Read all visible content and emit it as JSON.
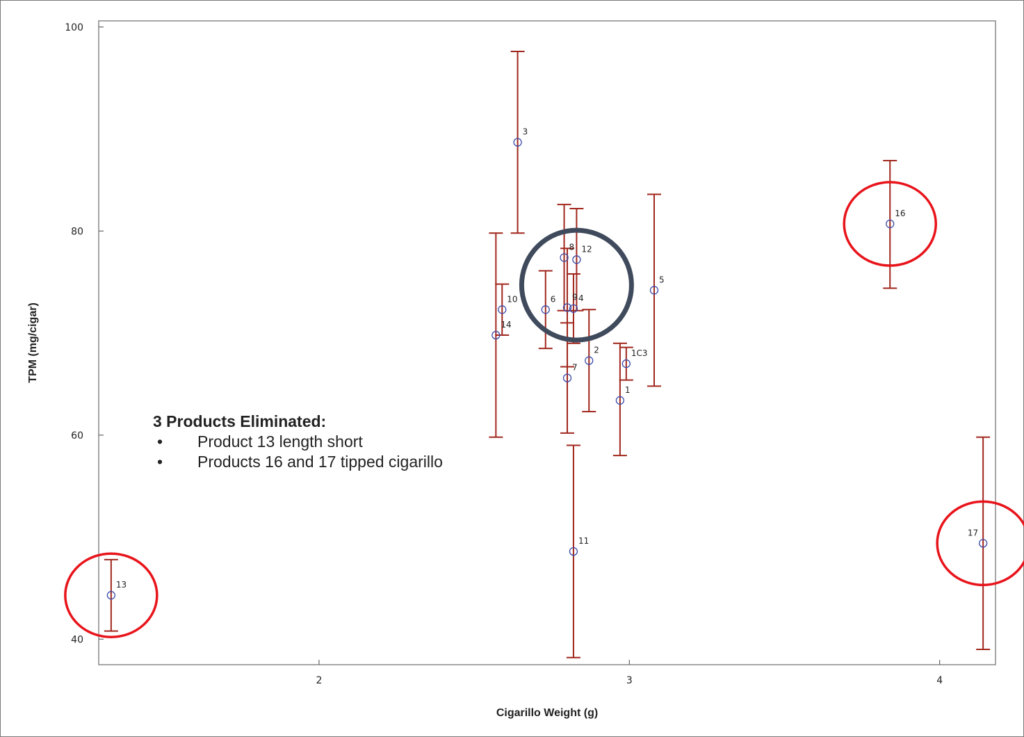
{
  "chart_data": {
    "type": "scatter",
    "title": "",
    "xlabel": "Cigarillo Weight (g)",
    "ylabel": "TPM (mg/cigar)",
    "xlim": [
      1.29,
      4.18
    ],
    "ylim": [
      37.5,
      100.6
    ],
    "xticks": [
      2,
      3,
      4
    ],
    "yticks": [
      40,
      60,
      80,
      100
    ],
    "grid": false,
    "error_bar_color": "#a0261c",
    "marker_color": "#3a4aa8",
    "points": [
      {
        "label": "1",
        "x": 2.97,
        "y": 63.4,
        "low": 58.0,
        "high": 69.0
      },
      {
        "label": "1C3",
        "x": 2.99,
        "y": 67.0,
        "low": 65.4,
        "high": 68.6
      },
      {
        "label": "2",
        "x": 2.87,
        "y": 67.3,
        "low": 62.3,
        "high": 72.3
      },
      {
        "label": "3",
        "x": 2.64,
        "y": 88.7,
        "low": 79.8,
        "high": 97.6
      },
      {
        "label": "4",
        "x": 2.82,
        "y": 72.4,
        "low": 69.0,
        "high": 75.8
      },
      {
        "label": "5",
        "x": 3.08,
        "y": 74.2,
        "low": 64.8,
        "high": 83.6
      },
      {
        "label": "6",
        "x": 2.73,
        "y": 72.3,
        "low": 68.5,
        "high": 76.1
      },
      {
        "label": "7",
        "x": 2.8,
        "y": 65.6,
        "low": 60.2,
        "high": 71.0
      },
      {
        "label": "8",
        "x": 2.79,
        "y": 77.4,
        "low": 72.2,
        "high": 82.6
      },
      {
        "label": "9",
        "x": 2.8,
        "y": 72.5,
        "low": 66.7,
        "high": 78.3
      },
      {
        "label": "10",
        "x": 2.59,
        "y": 72.3,
        "low": 69.8,
        "high": 74.8
      },
      {
        "label": "11",
        "x": 2.82,
        "y": 48.6,
        "low": 38.2,
        "high": 59.0
      },
      {
        "label": "12",
        "x": 2.83,
        "y": 77.2,
        "low": 72.2,
        "high": 82.2
      },
      {
        "label": "13",
        "x": 1.33,
        "y": 44.3,
        "low": 40.8,
        "high": 47.8
      },
      {
        "label": "14",
        "x": 2.57,
        "y": 69.8,
        "low": 59.8,
        "high": 79.8
      },
      {
        "label": "16",
        "x": 3.84,
        "y": 80.7,
        "low": 74.4,
        "high": 86.9
      },
      {
        "label": "17",
        "x": 4.14,
        "y": 49.4,
        "low": 39.0,
        "high": 59.8
      }
    ],
    "highlight_circles": [
      {
        "target": "13",
        "color": "#e8141b"
      },
      {
        "target": "16",
        "color": "#e8141b"
      },
      {
        "target": "17",
        "color": "#e8141b"
      },
      {
        "target": "cluster",
        "color": "#3f4a5c",
        "center": {
          "x": 2.83,
          "y": 74.7
        }
      }
    ]
  },
  "annotation": {
    "title": "3 Products Eliminated:",
    "bullets": [
      "Product 13 length short",
      "Products 16 and 17 tipped cigarillo"
    ]
  }
}
